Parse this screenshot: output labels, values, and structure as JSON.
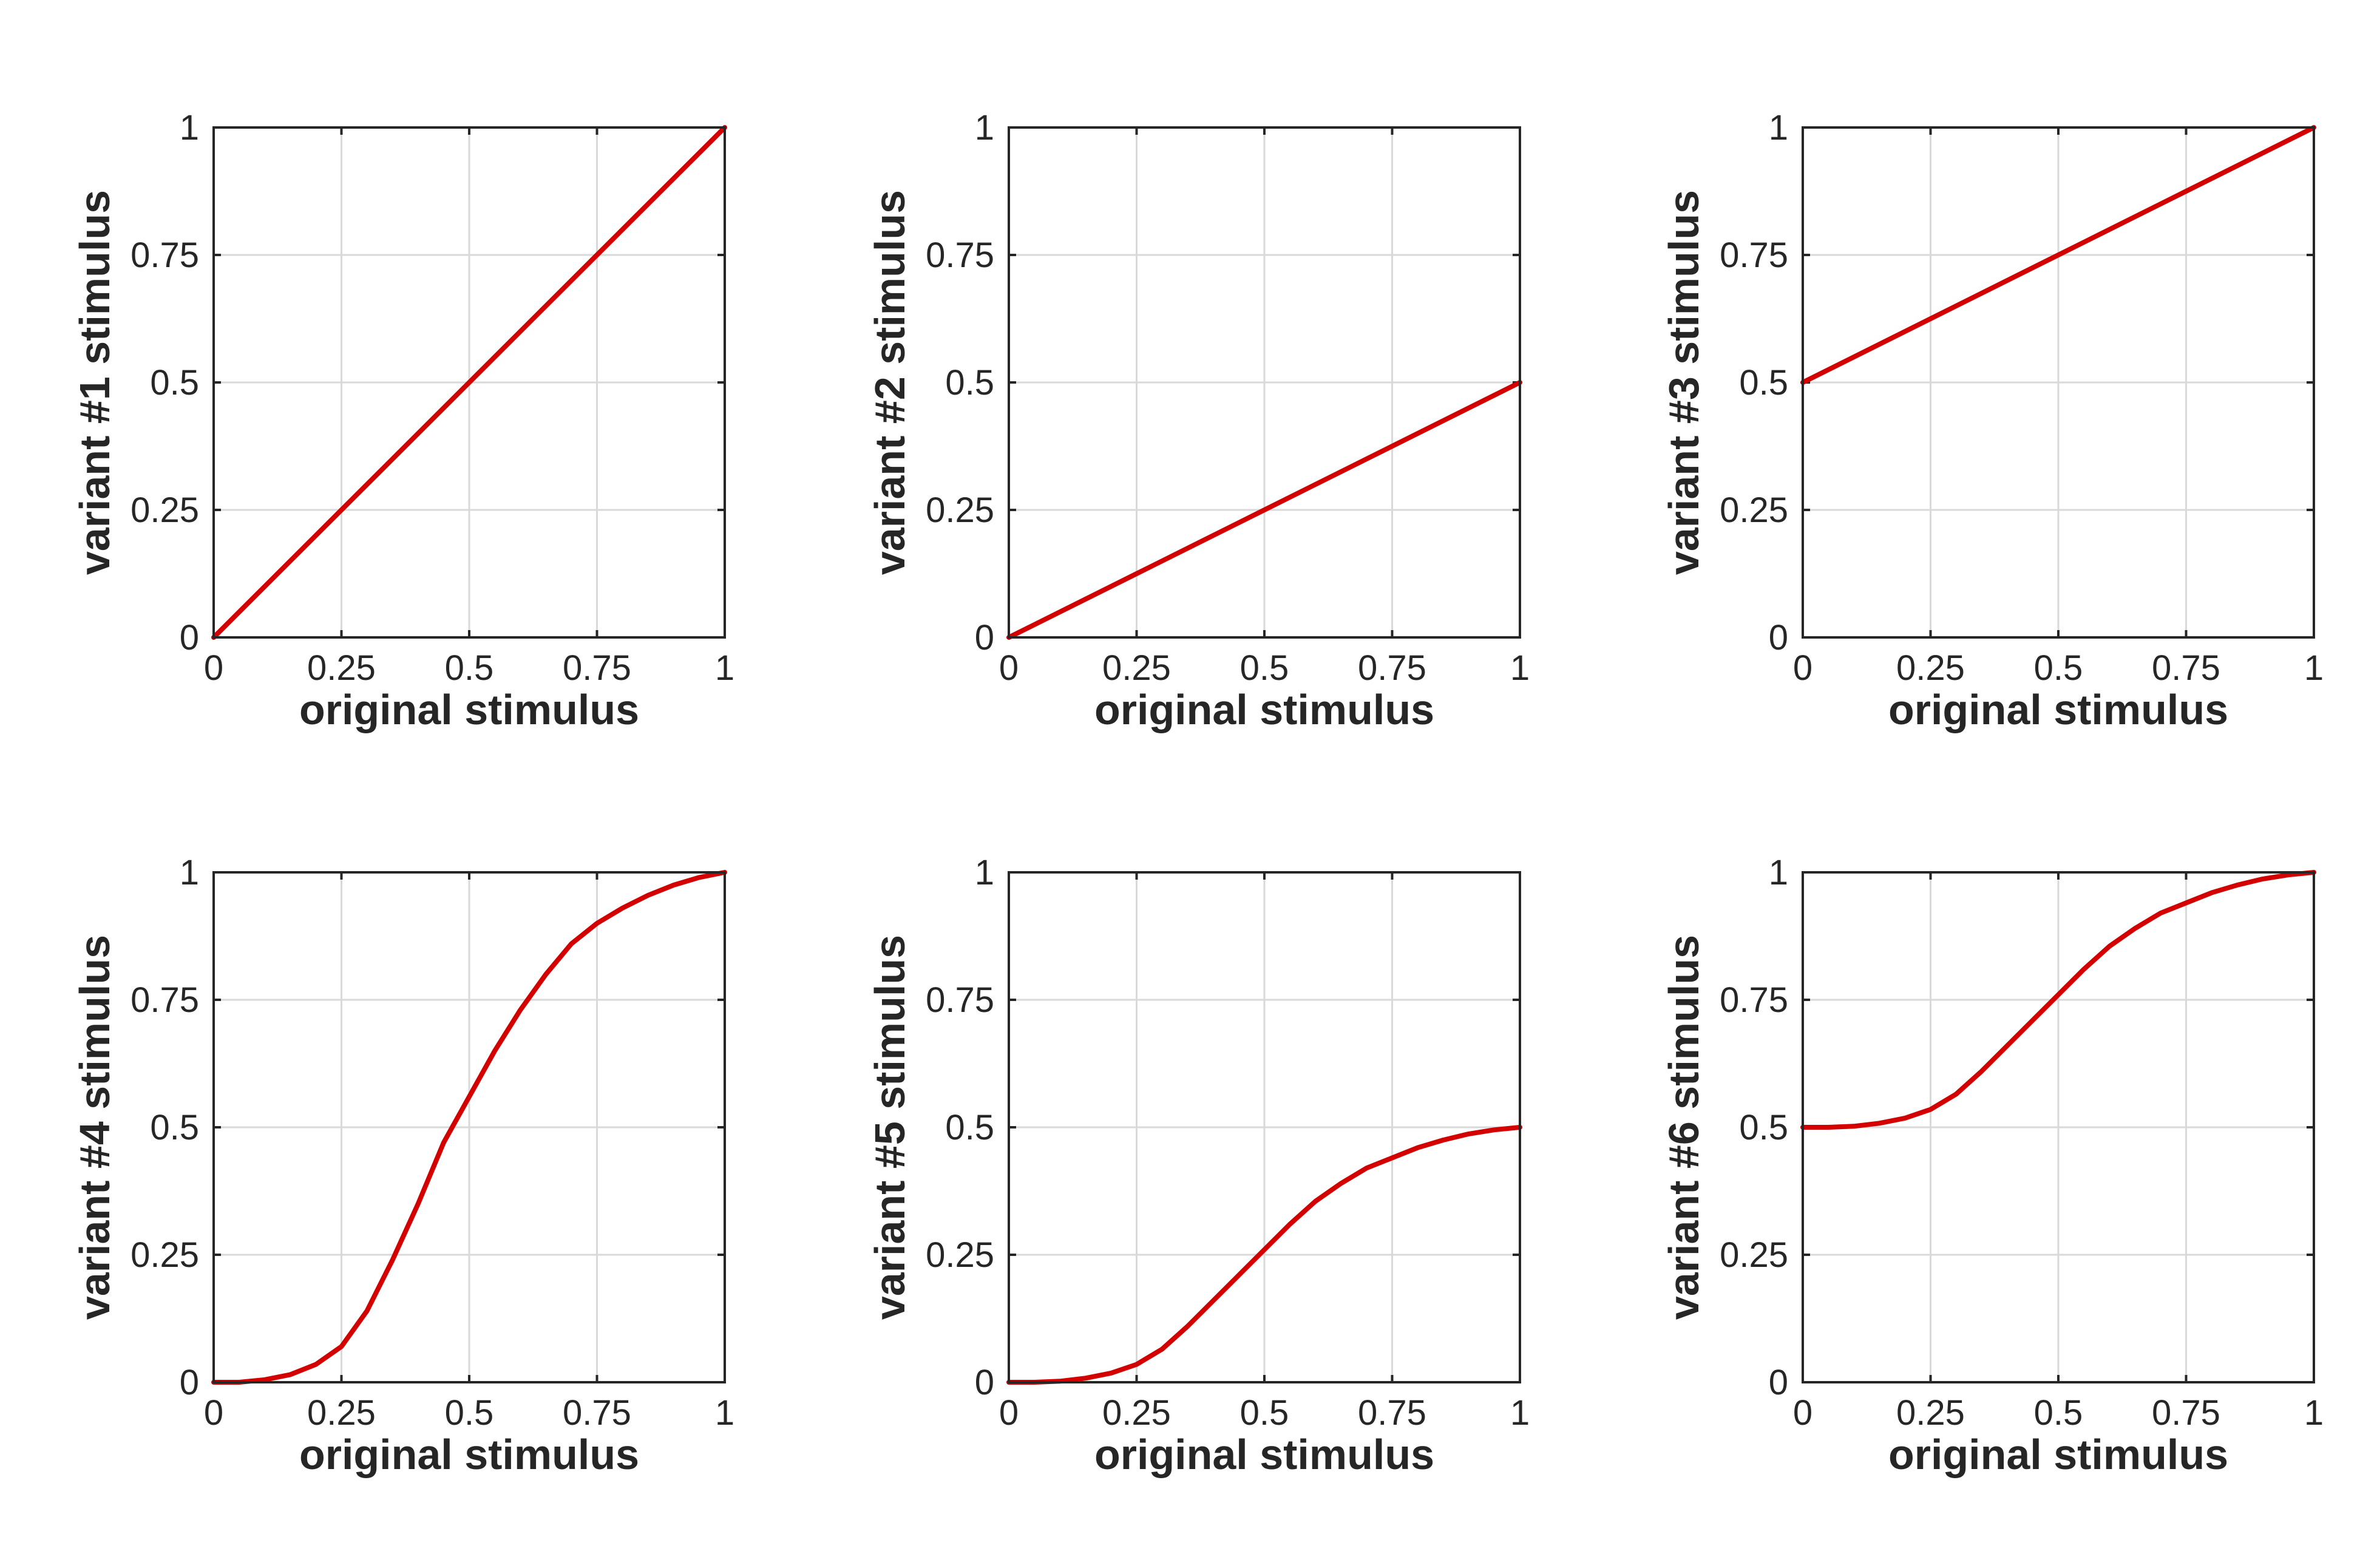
{
  "chart_data": [
    {
      "type": "line",
      "xlabel": "original stimulus",
      "ylabel": "variant #1 stimulus",
      "xlim": [
        0,
        1
      ],
      "ylim": [
        0,
        1
      ],
      "xticks": [
        "0",
        "0.25",
        "0.5",
        "0.75",
        "1"
      ],
      "yticks": [
        "0",
        "0.25",
        "0.5",
        "0.75",
        "1"
      ],
      "grid": true,
      "series": [
        {
          "color": "#d40000",
          "x": [
            0,
            0.25,
            0.5,
            0.75,
            1
          ],
          "y": [
            0,
            0.25,
            0.5,
            0.75,
            1
          ]
        }
      ]
    },
    {
      "type": "line",
      "xlabel": "original stimulus",
      "ylabel": "variant #2 stimulus",
      "xlim": [
        0,
        1
      ],
      "ylim": [
        0,
        1
      ],
      "xticks": [
        "0",
        "0.25",
        "0.5",
        "0.75",
        "1"
      ],
      "yticks": [
        "0",
        "0.25",
        "0.5",
        "0.75",
        "1"
      ],
      "grid": true,
      "series": [
        {
          "color": "#d40000",
          "x": [
            0,
            0.25,
            0.5,
            0.75,
            1
          ],
          "y": [
            0,
            0.125,
            0.25,
            0.375,
            0.5
          ]
        }
      ]
    },
    {
      "type": "line",
      "xlabel": "original stimulus",
      "ylabel": "variant #3 stimulus",
      "xlim": [
        0,
        1
      ],
      "ylim": [
        0,
        1
      ],
      "xticks": [
        "0",
        "0.25",
        "0.5",
        "0.75",
        "1"
      ],
      "yticks": [
        "0",
        "0.25",
        "0.5",
        "0.75",
        "1"
      ],
      "grid": true,
      "series": [
        {
          "color": "#d40000",
          "x": [
            0,
            0.25,
            0.5,
            0.75,
            1
          ],
          "y": [
            0.5,
            0.625,
            0.75,
            0.875,
            1
          ]
        }
      ]
    },
    {
      "type": "line",
      "xlabel": "original stimulus",
      "ylabel": "variant #4 stimulus",
      "xlim": [
        0,
        1
      ],
      "ylim": [
        0,
        1
      ],
      "xticks": [
        "0",
        "0.25",
        "0.5",
        "0.75",
        "1"
      ],
      "yticks": [
        "0",
        "0.25",
        "0.5",
        "0.75",
        "1"
      ],
      "grid": true,
      "series": [
        {
          "color": "#d40000",
          "x": [
            0,
            0.05,
            0.1,
            0.15,
            0.2,
            0.25,
            0.3,
            0.35,
            0.4,
            0.45,
            0.5,
            0.55,
            0.6,
            0.65,
            0.7,
            0.75,
            0.8,
            0.85,
            0.9,
            0.95,
            1
          ],
          "y": [
            0,
            0.0,
            0.005,
            0.015,
            0.035,
            0.07,
            0.14,
            0.24,
            0.35,
            0.47,
            0.56,
            0.65,
            0.73,
            0.8,
            0.86,
            0.9,
            0.93,
            0.955,
            0.975,
            0.99,
            1
          ]
        }
      ]
    },
    {
      "type": "line",
      "xlabel": "original stimulus",
      "ylabel": "variant #5 stimulus",
      "xlim": [
        0,
        1
      ],
      "ylim": [
        0,
        1
      ],
      "xticks": [
        "0",
        "0.25",
        "0.5",
        "0.75",
        "1"
      ],
      "yticks": [
        "0",
        "0.25",
        "0.5",
        "0.75",
        "1"
      ],
      "grid": true,
      "series": [
        {
          "color": "#d40000",
          "x": [
            0,
            0.05,
            0.1,
            0.15,
            0.2,
            0.25,
            0.3,
            0.35,
            0.4,
            0.45,
            0.5,
            0.55,
            0.6,
            0.65,
            0.7,
            0.75,
            0.8,
            0.85,
            0.9,
            0.95,
            1
          ],
          "y": [
            0,
            0.0,
            0.002,
            0.008,
            0.018,
            0.035,
            0.065,
            0.11,
            0.16,
            0.21,
            0.26,
            0.31,
            0.355,
            0.39,
            0.42,
            0.44,
            0.46,
            0.475,
            0.487,
            0.495,
            0.5
          ]
        }
      ]
    },
    {
      "type": "line",
      "xlabel": "original stimulus",
      "ylabel": "variant #6 stimulus",
      "xlim": [
        0,
        1
      ],
      "ylim": [
        0,
        1
      ],
      "xticks": [
        "0",
        "0.25",
        "0.5",
        "0.75",
        "1"
      ],
      "yticks": [
        "0",
        "0.25",
        "0.5",
        "0.75",
        "1"
      ],
      "grid": true,
      "series": [
        {
          "color": "#d40000",
          "x": [
            0,
            0.05,
            0.1,
            0.15,
            0.2,
            0.25,
            0.3,
            0.35,
            0.4,
            0.45,
            0.5,
            0.55,
            0.6,
            0.65,
            0.7,
            0.75,
            0.8,
            0.85,
            0.9,
            0.95,
            1
          ],
          "y": [
            0.5,
            0.5,
            0.502,
            0.508,
            0.518,
            0.535,
            0.565,
            0.61,
            0.66,
            0.71,
            0.76,
            0.81,
            0.855,
            0.89,
            0.92,
            0.94,
            0.96,
            0.975,
            0.987,
            0.995,
            1
          ]
        }
      ]
    }
  ]
}
